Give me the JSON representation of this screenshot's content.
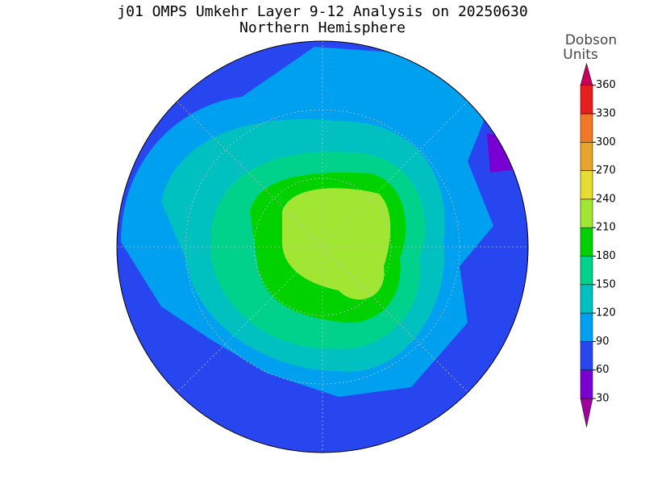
{
  "title": "j01 OMPS Umkehr Layer 9-12 Analysis on 20250630",
  "subtitle": "Northern Hemisphere",
  "colorbar": {
    "label_lines": [
      "Dobson",
      "Units"
    ],
    "ticks": [
      30,
      60,
      90,
      120,
      150,
      180,
      210,
      240,
      270,
      300,
      330,
      360
    ],
    "colors": [
      "#a0009c",
      "#7800d2",
      "#2846f0",
      "#00a0f0",
      "#00c0c0",
      "#00d28c",
      "#00d200",
      "#a0e632",
      "#e6dc32",
      "#e6a62d",
      "#f07828",
      "#e61e1e",
      "#c8005a"
    ]
  }
}
